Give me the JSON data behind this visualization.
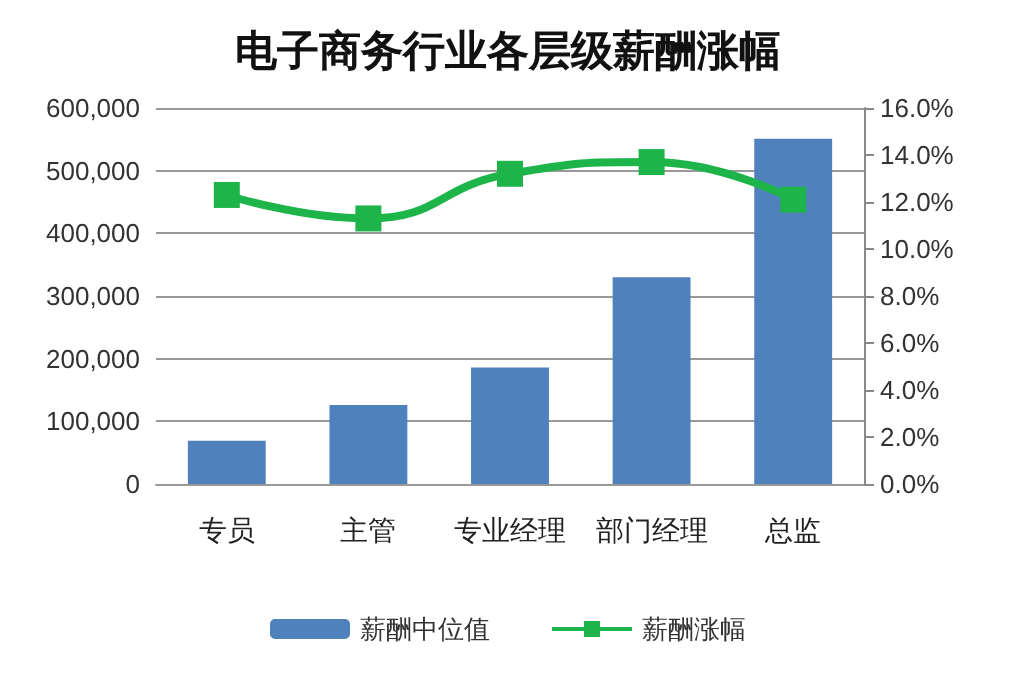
{
  "chart_data": {
    "type": "bar",
    "title": "电子商务行业各层级薪酬涨幅",
    "categories": [
      "专员",
      "主管",
      "专业经理",
      "部门经理",
      "总监"
    ],
    "series": [
      {
        "name": "薪酬中位值",
        "color": "#4f81bd",
        "values": [
          69000,
          126000,
          186000,
          330000,
          551000
        ]
      },
      {
        "name": "薪酬涨幅",
        "type": "line",
        "axis": "y2",
        "color": "#1db44a",
        "marker": "square",
        "line_style": "solid",
        "values": [
          12.3,
          11.3,
          13.2,
          13.7,
          12.1
        ]
      }
    ],
    "ylim": [
      0,
      600000
    ],
    "yticks": [
      0,
      {
        "value": 100000,
        "label": "100,000"
      },
      {
        "value": 200000,
        "label": "200,000"
      },
      {
        "value": 300000,
        "label": "300,000"
      },
      {
        "value": 400000,
        "label": "400,000"
      },
      {
        "value": 500000,
        "label": "500,000"
      },
      {
        "value": 600000,
        "label": "600,000"
      }
    ],
    "y2lim": [
      0,
      16
    ],
    "y2ticks": [
      {
        "value": 0,
        "label": "0.0%"
      },
      {
        "value": 2,
        "label": "2.0%"
      },
      {
        "value": 4,
        "label": "4.0%"
      },
      {
        "value": 6,
        "label": "6.0%"
      },
      {
        "value": 8,
        "label": "8.0%"
      },
      {
        "value": 10,
        "label": "10.0%"
      },
      {
        "value": 12,
        "label": "12.0%"
      },
      {
        "value": 14,
        "label": "14.0%"
      },
      {
        "value": 16,
        "label": "16.0%"
      }
    ],
    "grid": "y",
    "legend": "bottom"
  }
}
